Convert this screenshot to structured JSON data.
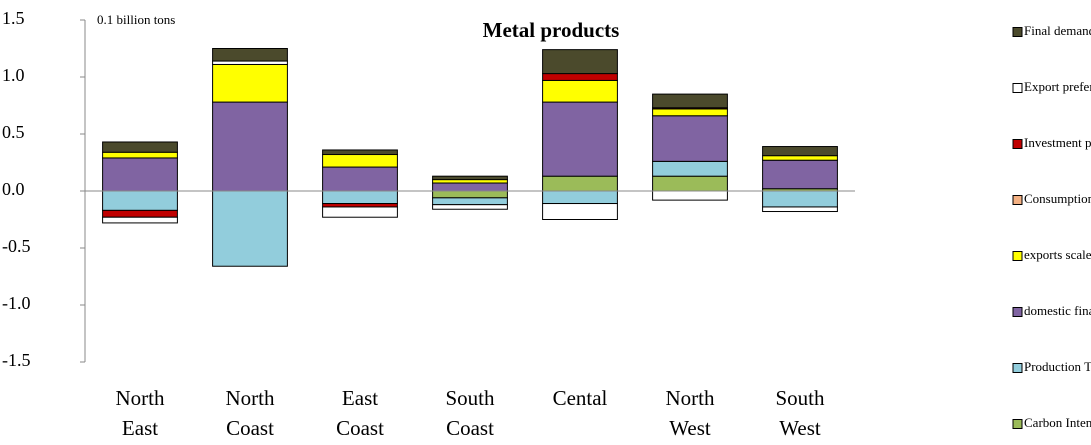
{
  "chart_data": {
    "type": "stacked_bar",
    "title": "Metal products",
    "annotation": "0.1 billion tons",
    "categories": [
      "North East",
      "North Coast",
      "East Coast",
      "South Coast",
      "Cental",
      "North West",
      "South West"
    ],
    "ylim": [
      -1.5,
      1.5
    ],
    "yticks": [
      {
        "value": 1.5,
        "label": "1.5"
      },
      {
        "value": 1,
        "label": "1.0"
      },
      {
        "value": 0.5,
        "label": "0.5"
      },
      {
        "value": 0,
        "label": "0.0"
      },
      {
        "value": -0.5,
        "label": "-0.5"
      },
      {
        "value": -1,
        "label": "-1.0"
      },
      {
        "value": -1.5,
        "label": "-1.5"
      }
    ],
    "series": [
      {
        "name": "Final demand structure",
        "color": "#4b4a2c",
        "values": [
          0.09,
          0.11,
          0.04,
          0.03,
          0.21,
          0.12,
          0.08
        ]
      },
      {
        "name": "Export preference",
        "color": "#ffffff",
        "values": [
          -0.05,
          0.03,
          -0.09,
          -0.04,
          -0.14,
          -0.08,
          -0.04
        ]
      },
      {
        "name": "Investment preference",
        "color": "#c00000",
        "values": [
          -0.06,
          0,
          -0.03,
          0,
          0.06,
          0.01,
          0
        ]
      },
      {
        "name": "Consumption preference",
        "color": "#f4b183",
        "values": [
          0,
          0,
          0,
          0,
          0,
          0,
          0
        ]
      },
      {
        "name": "exports scale",
        "color": "#ffff00",
        "values": [
          0.05,
          0.33,
          0.11,
          0.03,
          0.19,
          0.06,
          0.04
        ]
      },
      {
        "name": "domestic final demand scale",
        "color": "#8064a2",
        "values": [
          0.29,
          0.78,
          0.21,
          0.07,
          0.65,
          0.4,
          0.25
        ]
      },
      {
        "name": "Production Technology",
        "color": "#92cddc",
        "values": [
          -0.17,
          -0.66,
          -0.11,
          -0.06,
          -0.11,
          0.13,
          -0.14
        ]
      },
      {
        "name": "Carbon Intensity",
        "color": "#9bbb59",
        "values": [
          0,
          0,
          0,
          -0.06,
          0.13,
          0.13,
          0.02
        ]
      }
    ]
  }
}
